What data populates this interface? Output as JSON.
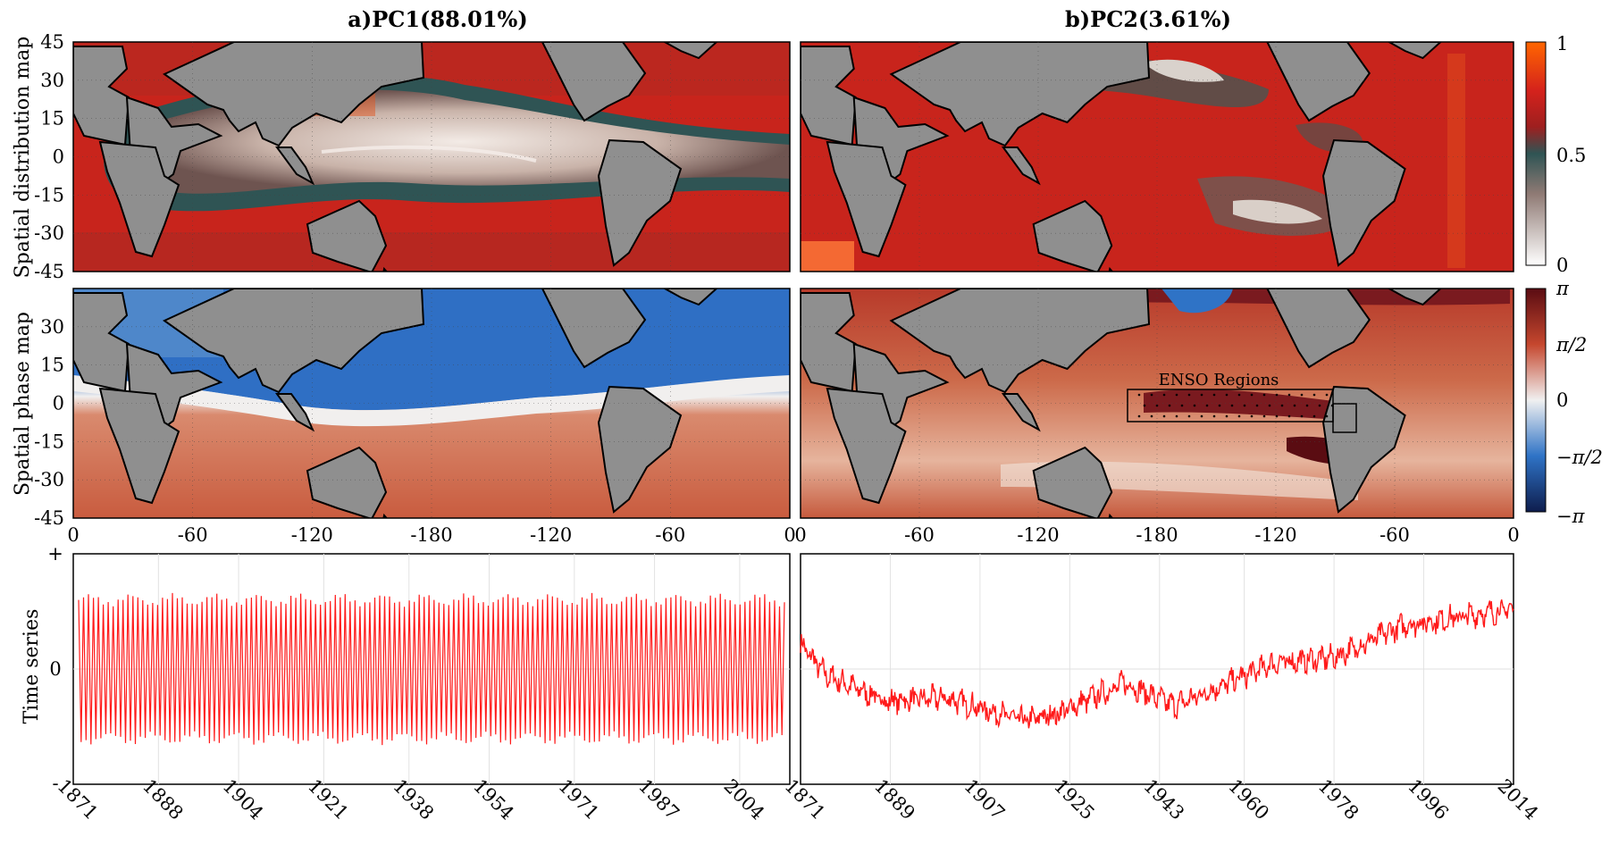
{
  "figure": {
    "panel_a_title": "a)PC1(88.01%)",
    "panel_b_title": "b)PC2(3.61%)",
    "row_labels": [
      "Spatial distribution map",
      "Spatial phase map",
      "Time series"
    ],
    "enso_label": "ENSO  Regions"
  },
  "colors": {
    "ocean_red": "#c8241c",
    "ocean_orange": "#d9763f",
    "land": "#8f8f8f",
    "teal": "#2f5454",
    "ts_line": "#ff1a1a",
    "phase_blue": "#2f73c6"
  },
  "chart_data": [
    {
      "type": "heatmap",
      "name": "PC1 spatial distribution map",
      "ylabel": "Spatial distribution map",
      "xlim": [
        0,
        360
      ],
      "ylim": [
        -45,
        45
      ],
      "yticks": [
        "45",
        "30",
        "15",
        "0",
        "-15",
        "-30",
        "-45"
      ],
      "colorbar": {
        "min": 0,
        "max": 1,
        "ticks": [
          "1",
          "0.5",
          "0"
        ]
      }
    },
    {
      "type": "heatmap",
      "name": "PC2 spatial distribution map",
      "xlim": [
        0,
        360
      ],
      "ylim": [
        -45,
        45
      ]
    },
    {
      "type": "heatmap",
      "name": "PC1 spatial phase map",
      "ylabel": "Spatial phase map",
      "xticks": [
        "0",
        "-60",
        "-120",
        "-180",
        "-120",
        "-60",
        "0"
      ],
      "yticks": [
        "30",
        "15",
        "0",
        "-15",
        "-30",
        "-45"
      ],
      "colorbar": {
        "ticks": [
          "π",
          "π/2",
          "0",
          "−π/2",
          "−π"
        ]
      }
    },
    {
      "type": "heatmap",
      "name": "PC2 spatial phase map",
      "xticks": [
        "0",
        "-60",
        "-120",
        "-180",
        "-120",
        "-60",
        "0"
      ],
      "annotation": "ENSO  Regions"
    },
    {
      "type": "line",
      "name": "PC1 time series",
      "ylabel": "Time series",
      "yticks": [
        "+",
        "0",
        "-"
      ],
      "xticks": [
        "1871",
        "1888",
        "1904",
        "1921",
        "1938",
        "1954",
        "1971",
        "1987",
        "2004"
      ],
      "xlim": [
        1871,
        2014
      ],
      "pattern": "annual oscillation, amplitude about 0.62 of half range, constant",
      "cycles": 143
    },
    {
      "type": "line",
      "name": "PC2 time series",
      "xticks": [
        "1871",
        "1889",
        "1907",
        "1925",
        "1943",
        "1960",
        "1978",
        "1996",
        "2014"
      ],
      "xlim": [
        1871,
        2014
      ],
      "trend_x": [
        1871,
        1876,
        1888,
        1900,
        1916,
        1923,
        1936,
        1946,
        1966,
        1978,
        1992,
        2014
      ],
      "trend_y": [
        0.22,
        -0.05,
        -0.28,
        -0.25,
        -0.45,
        -0.38,
        -0.12,
        -0.32,
        0.05,
        0.1,
        0.38,
        0.52
      ]
    }
  ]
}
